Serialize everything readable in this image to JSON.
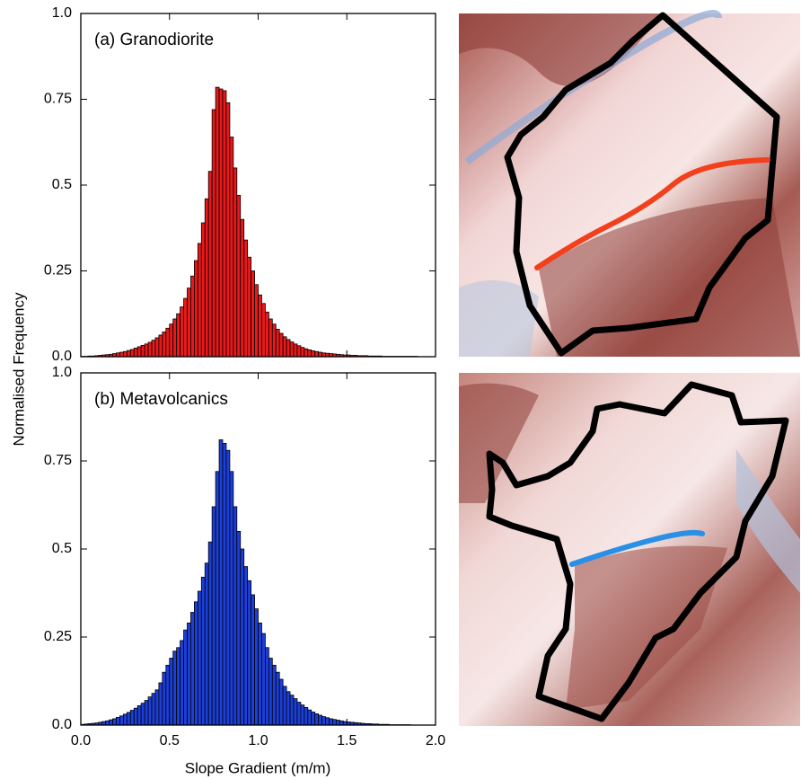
{
  "labels": {
    "ylabel": "Normalised Frequency",
    "xlabel": "Slope Gradient (m/m)"
  },
  "chart_data": [
    {
      "type": "histogram",
      "annotation": "(a) Granodiorite",
      "color": "#e8191b",
      "bins": [
        0,
        0.02,
        0.04,
        0.06,
        0.08,
        0.1,
        0.12,
        0.14,
        0.16,
        0.18,
        0.2,
        0.22,
        0.24,
        0.26,
        0.28,
        0.3,
        0.32,
        0.34,
        0.36,
        0.38,
        0.4,
        0.42,
        0.44,
        0.46,
        0.48,
        0.5,
        0.52,
        0.54,
        0.56,
        0.58,
        0.6,
        0.62,
        0.64,
        0.66,
        0.68,
        0.7,
        0.72,
        0.74,
        0.76,
        0.78,
        0.8,
        0.82,
        0.84,
        0.86,
        0.88,
        0.9,
        0.92,
        0.94,
        0.96,
        0.98,
        1,
        1.02,
        1.04,
        1.06,
        1.08,
        1.1,
        1.12,
        1.14,
        1.16,
        1.18,
        1.2,
        1.22,
        1.24,
        1.26,
        1.28,
        1.3,
        1.32,
        1.34,
        1.36,
        1.38,
        1.4,
        1.42,
        1.44,
        1.46,
        1.48,
        1.5,
        1.52,
        1.54,
        1.56,
        1.58,
        1.6,
        1.62,
        1.64,
        1.66,
        1.68,
        1.7,
        1.72,
        1.74,
        1.76,
        1.78,
        1.8,
        1.82,
        1.84,
        1.86,
        1.88,
        1.9,
        1.92,
        1.94,
        1.96,
        1.98,
        2
      ],
      "values": [
        0.001,
        0.001,
        0.002,
        0.002,
        0.003,
        0.004,
        0.005,
        0.006,
        0.007,
        0.009,
        0.011,
        0.013,
        0.015,
        0.018,
        0.021,
        0.025,
        0.029,
        0.033,
        0.037,
        0.042,
        0.048,
        0.055,
        0.063,
        0.072,
        0.083,
        0.095,
        0.11,
        0.125,
        0.145,
        0.17,
        0.2,
        0.235,
        0.28,
        0.33,
        0.39,
        0.46,
        0.54,
        0.72,
        0.785,
        0.78,
        0.775,
        0.74,
        0.64,
        0.55,
        0.47,
        0.4,
        0.34,
        0.29,
        0.25,
        0.21,
        0.18,
        0.155,
        0.13,
        0.11,
        0.095,
        0.08,
        0.068,
        0.058,
        0.05,
        0.043,
        0.037,
        0.032,
        0.027,
        0.023,
        0.02,
        0.017,
        0.015,
        0.013,
        0.011,
        0.01,
        0.009,
        0.008,
        0.007,
        0.006,
        0.005,
        0.005,
        0.004,
        0.004,
        0.003,
        0.003,
        0.003,
        0.002,
        0.002,
        0.002,
        0.002,
        0.001,
        0.001,
        0.001,
        0.001,
        0.001,
        0.001,
        0.001,
        0.001,
        0.001,
        0.001,
        0,
        0,
        0,
        0,
        0
      ],
      "xlim": [
        0,
        2
      ],
      "xticks": [
        0,
        0.5,
        1,
        1.5,
        2
      ],
      "ylim": [
        0,
        1
      ],
      "yticks": [
        {
          "value": 0,
          "label": "0.0"
        },
        0.25,
        0.5,
        0.75,
        {
          "value": 1,
          "label": "1.0"
        }
      ]
    },
    {
      "type": "histogram",
      "annotation": "(b) Metavolcanics",
      "color": "#1c3fd8",
      "bins": [
        0,
        0.02,
        0.04,
        0.06,
        0.08,
        0.1,
        0.12,
        0.14,
        0.16,
        0.18,
        0.2,
        0.22,
        0.24,
        0.26,
        0.28,
        0.3,
        0.32,
        0.34,
        0.36,
        0.38,
        0.4,
        0.42,
        0.44,
        0.46,
        0.48,
        0.5,
        0.52,
        0.54,
        0.56,
        0.58,
        0.6,
        0.62,
        0.64,
        0.66,
        0.68,
        0.7,
        0.72,
        0.74,
        0.76,
        0.78,
        0.8,
        0.82,
        0.84,
        0.86,
        0.88,
        0.9,
        0.92,
        0.94,
        0.96,
        0.98,
        1,
        1.02,
        1.04,
        1.06,
        1.08,
        1.1,
        1.12,
        1.14,
        1.16,
        1.18,
        1.2,
        1.22,
        1.24,
        1.26,
        1.28,
        1.3,
        1.32,
        1.34,
        1.36,
        1.38,
        1.4,
        1.42,
        1.44,
        1.46,
        1.48,
        1.5,
        1.52,
        1.54,
        1.56,
        1.58,
        1.6,
        1.62,
        1.64,
        1.66,
        1.68,
        1.7,
        1.72,
        1.74,
        1.76,
        1.78,
        1.8,
        1.82,
        1.84,
        1.86,
        1.88,
        1.9,
        1.92,
        1.94,
        1.96,
        1.98,
        2
      ],
      "values": [
        0.002,
        0.003,
        0.004,
        0.005,
        0.006,
        0.008,
        0.01,
        0.012,
        0.015,
        0.018,
        0.022,
        0.026,
        0.031,
        0.036,
        0.042,
        0.048,
        0.055,
        0.062,
        0.07,
        0.08,
        0.09,
        0.1,
        0.12,
        0.15,
        0.17,
        0.19,
        0.21,
        0.22,
        0.24,
        0.27,
        0.29,
        0.32,
        0.35,
        0.38,
        0.42,
        0.46,
        0.52,
        0.62,
        0.72,
        0.81,
        0.8,
        0.78,
        0.72,
        0.62,
        0.55,
        0.5,
        0.45,
        0.41,
        0.37,
        0.33,
        0.29,
        0.26,
        0.22,
        0.19,
        0.17,
        0.15,
        0.13,
        0.11,
        0.095,
        0.085,
        0.075,
        0.065,
        0.057,
        0.05,
        0.043,
        0.037,
        0.032,
        0.028,
        0.024,
        0.021,
        0.018,
        0.016,
        0.014,
        0.012,
        0.01,
        0.009,
        0.008,
        0.007,
        0.006,
        0.005,
        0.004,
        0.004,
        0.003,
        0.003,
        0.002,
        0.002,
        0.002,
        0.001,
        0.001,
        0.001,
        0.001,
        0.001,
        0.001,
        0,
        0,
        0,
        0,
        0,
        0,
        0
      ],
      "xlim": [
        0,
        2
      ],
      "xticks": [
        {
          "value": 0,
          "label": "0.0"
        },
        0.5,
        {
          "value": 1,
          "label": "1.0"
        },
        1.5,
        {
          "value": 2,
          "label": "2.0"
        }
      ],
      "ylim": [
        0,
        1
      ],
      "yticks": [
        {
          "value": 0,
          "label": "0.0"
        },
        0.25,
        0.5,
        0.75,
        {
          "value": 1,
          "label": "1.0"
        }
      ]
    }
  ]
}
